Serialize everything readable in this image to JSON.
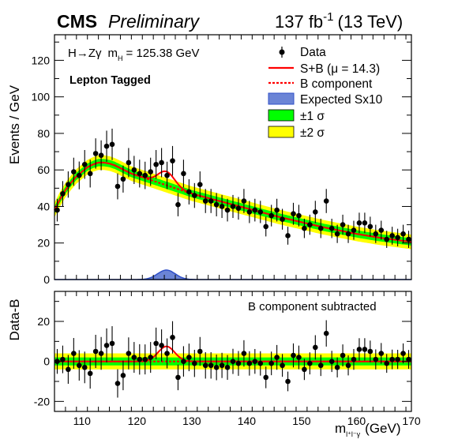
{
  "header": {
    "experiment": "CMS",
    "status": "Preliminary",
    "lumi_value": "137 fb",
    "lumi_exp": "-1",
    "energy": "(13 TeV)"
  },
  "info": {
    "process_a": "H",
    "arrow": "→",
    "process_b": "Zγ",
    "mass_label": "m",
    "mass_sub": "H",
    "mass_value": "= 125.38 GeV",
    "category": "Lepton Tagged"
  },
  "legend": {
    "data": "Data",
    "sb": "S+B (μ = 14.3)",
    "b": "B component",
    "sig": "Expected Sx10",
    "band1": "±1 σ",
    "band2": "±2 σ"
  },
  "lower_note": "B component subtracted",
  "colors": {
    "sb": "#ff0000",
    "b": "#ff0000",
    "band1": "#00ff00",
    "band2": "#ffff00",
    "signal_fill": "#6b84d6",
    "signal_line": "#2f4fc8",
    "points": "#000000"
  },
  "chart_data": [
    {
      "type": "scatter",
      "panel": "main",
      "xlabel": "m",
      "xlabel_sub": "l⁺l⁻γ",
      "xlabel_unit": "(GeV)",
      "ylabel": "Events / GeV",
      "xlim": [
        105,
        170
      ],
      "ylim": [
        0,
        134
      ],
      "xticks": [
        110,
        120,
        130,
        140,
        150,
        160,
        170
      ],
      "yticks": [
        0,
        20,
        40,
        60,
        80,
        100,
        120
      ],
      "x": [
        105.5,
        106.5,
        107.5,
        108.5,
        109.5,
        110.5,
        111.5,
        112.5,
        113.5,
        114.5,
        115.5,
        116.5,
        117.5,
        118.5,
        119.5,
        120.5,
        121.5,
        122.5,
        123.5,
        124.5,
        125.5,
        126.5,
        127.5,
        128.5,
        129.5,
        130.5,
        131.5,
        132.5,
        133.5,
        134.5,
        135.5,
        136.5,
        137.5,
        138.5,
        139.5,
        140.5,
        141.5,
        142.5,
        143.5,
        144.5,
        145.5,
        146.5,
        147.5,
        148.5,
        149.5,
        150.5,
        151.5,
        152.5,
        153.5,
        154.5,
        155.5,
        156.5,
        157.5,
        158.5,
        159.5,
        160.5,
        161.5,
        162.5,
        163.5,
        164.5,
        165.5,
        166.5,
        167.5,
        168.5,
        169.5
      ],
      "y": [
        38,
        47,
        52,
        59,
        57,
        63,
        58,
        69,
        68,
        73,
        74,
        51,
        55,
        64,
        60,
        58,
        57,
        59,
        63,
        64,
        57,
        65,
        41,
        58,
        48,
        46,
        52,
        43,
        43,
        41,
        40,
        38,
        40,
        39,
        43,
        37,
        38,
        37,
        29,
        35,
        38,
        33,
        24,
        36,
        35,
        28,
        30,
        37,
        28,
        43,
        28,
        25,
        30,
        25,
        27,
        31,
        31,
        29,
        25,
        27,
        22,
        24,
        23,
        25,
        22
      ],
      "yerr": [
        6.2,
        6.9,
        7.2,
        7.7,
        7.6,
        7.9,
        7.6,
        8.3,
        8.2,
        8.5,
        8.6,
        7.1,
        7.4,
        8.0,
        7.7,
        7.6,
        7.5,
        7.7,
        7.9,
        8.0,
        7.5,
        8.1,
        6.4,
        7.6,
        6.9,
        6.8,
        7.2,
        6.6,
        6.6,
        6.4,
        6.3,
        6.2,
        6.3,
        6.2,
        6.6,
        6.1,
        6.2,
        6.1,
        5.4,
        5.9,
        6.2,
        5.7,
        4.9,
        6.0,
        5.9,
        5.3,
        5.5,
        6.1,
        5.3,
        6.6,
        5.3,
        5.0,
        5.5,
        5.0,
        5.2,
        5.6,
        5.6,
        5.4,
        5.0,
        5.2,
        4.7,
        4.9,
        4.8,
        5.0,
        4.7
      ],
      "background_model": {
        "x": [
          105,
          106,
          107,
          108,
          109,
          110,
          111,
          112,
          113,
          114,
          115,
          116,
          117,
          118,
          119,
          120,
          121,
          122,
          123,
          124,
          125,
          126,
          127,
          128,
          129,
          130,
          131,
          132,
          133,
          134,
          135,
          136,
          137,
          138,
          139,
          140,
          141,
          142,
          143,
          144,
          145,
          146,
          147,
          148,
          149,
          150,
          151,
          152,
          153,
          154,
          155,
          156,
          157,
          158,
          159,
          160,
          161,
          162,
          163,
          164,
          165,
          166,
          167,
          168,
          169,
          170
        ],
        "y": [
          38,
          44,
          49,
          53,
          56.5,
          59,
          61.5,
          63,
          64,
          64,
          63.5,
          62.5,
          61,
          59.5,
          58,
          57,
          56,
          55,
          54,
          53,
          52,
          51,
          50,
          49,
          48,
          47,
          46.2,
          45.4,
          44.6,
          43.8,
          43,
          42.2,
          41.4,
          40.6,
          39.8,
          39,
          38.2,
          37.4,
          36.6,
          35.8,
          35,
          34.2,
          33.5,
          32.8,
          32.1,
          31.4,
          30.7,
          30,
          29.3,
          28.6,
          28,
          27.4,
          26.8,
          26.2,
          25.6,
          25,
          24.5,
          24,
          23.5,
          23,
          22.6,
          22.2,
          21.8,
          21.4,
          21,
          20.6
        ]
      },
      "signal_plus_background": {
        "mu": 14.3,
        "signal_peak": 7.5,
        "signal_mean": 125.38,
        "signal_sigma": 1.5
      },
      "band_1sigma": 2.0,
      "band_2sigma": 4.0,
      "expected_signal_x10": {
        "peak": 5.2,
        "mean": 125.38,
        "sigma": 1.6
      }
    },
    {
      "type": "scatter",
      "panel": "ratio",
      "ylabel": "Data-B",
      "xlim": [
        105,
        170
      ],
      "ylim": [
        -25,
        35
      ],
      "yticks": [
        -20,
        0,
        20
      ],
      "x": [
        105.5,
        106.5,
        107.5,
        108.5,
        109.5,
        110.5,
        111.5,
        112.5,
        113.5,
        114.5,
        115.5,
        116.5,
        117.5,
        118.5,
        119.5,
        120.5,
        121.5,
        122.5,
        123.5,
        124.5,
        125.5,
        126.5,
        127.5,
        128.5,
        129.5,
        130.5,
        131.5,
        132.5,
        133.5,
        134.5,
        135.5,
        136.5,
        137.5,
        138.5,
        139.5,
        140.5,
        141.5,
        142.5,
        143.5,
        144.5,
        145.5,
        146.5,
        147.5,
        148.5,
        149.5,
        150.5,
        151.5,
        152.5,
        153.5,
        154.5,
        155.5,
        156.5,
        157.5,
        158.5,
        159.5,
        160.5,
        161.5,
        162.5,
        163.5,
        164.5,
        165.5,
        166.5,
        167.5,
        168.5,
        169.5
      ],
      "y": [
        0,
        1,
        -4,
        4,
        -2,
        -3,
        -6,
        5,
        4,
        8,
        9,
        -11,
        -7,
        4,
        2,
        1,
        1,
        2,
        9,
        8,
        4,
        12,
        -8,
        0,
        2,
        -1,
        5,
        -2,
        -2,
        -3,
        -2,
        -3,
        0,
        -1,
        4,
        -1,
        0,
        -1,
        -8,
        -1,
        2,
        -2,
        -10,
        3,
        2,
        -4,
        -1,
        7,
        -2,
        14,
        0,
        -3,
        3,
        -2,
        1,
        6,
        6,
        5,
        1,
        4,
        -1,
        1,
        1,
        4,
        1
      ],
      "yerr": [
        6.2,
        6.9,
        7.2,
        7.7,
        7.6,
        7.9,
        7.6,
        8.3,
        8.2,
        8.5,
        8.6,
        7.1,
        7.4,
        8.0,
        7.7,
        7.6,
        7.5,
        7.7,
        7.9,
        8.0,
        7.5,
        8.1,
        6.4,
        7.6,
        6.9,
        6.8,
        7.2,
        6.6,
        6.6,
        6.4,
        6.3,
        6.2,
        6.3,
        6.2,
        6.6,
        6.1,
        6.2,
        6.1,
        5.4,
        5.9,
        6.2,
        5.7,
        4.9,
        6.0,
        5.9,
        5.3,
        5.5,
        6.1,
        5.3,
        6.6,
        5.3,
        5.0,
        5.5,
        5.0,
        5.2,
        5.6,
        5.6,
        5.4,
        5.0,
        5.2,
        4.7,
        4.9,
        4.8,
        5.0,
        4.7
      ],
      "signal_peak": 7.5,
      "signal_mean": 125.38,
      "signal_sigma": 1.5,
      "band_1sigma": 2.0,
      "band_2sigma": 4.0
    }
  ]
}
